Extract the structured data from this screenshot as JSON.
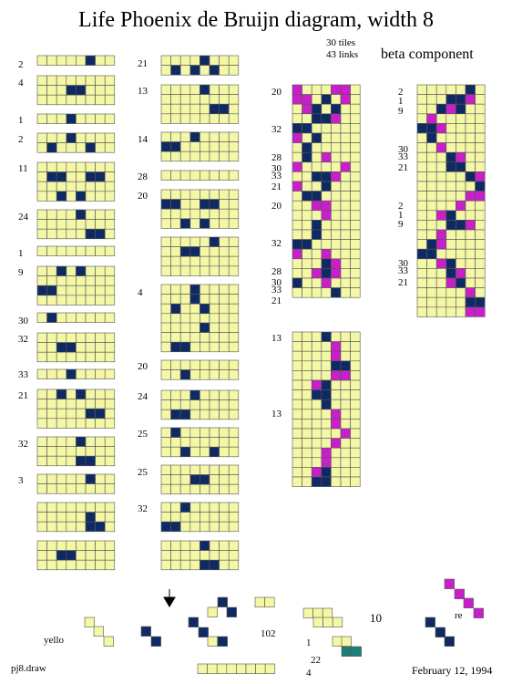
{
  "title": "Life Phoenix de Bruijn diagram, width 8",
  "stats": [
    "30 tiles",
    "43 links"
  ],
  "component_label": "beta component",
  "footer": {
    "file": "pj8.draw",
    "date": "February 12, 1994"
  },
  "bottom_labels": {
    "yello": "yello",
    "re": "re",
    "ten": "10",
    "one_oh_two": "102",
    "one": "1",
    "twenty_two": "22",
    "four": "4"
  },
  "colors": {
    "cell": "#f4f7a6",
    "filled": "#0f2a63",
    "magenta": "#c81fc8",
    "teal": "#1c7d7a",
    "grid": "#555555"
  },
  "col1": {
    "labels": [
      "2",
      "4",
      "1",
      "2",
      "11",
      "24",
      "1",
      "9",
      "30",
      "32",
      "33",
      "21",
      "32",
      "3"
    ],
    "tiles": [
      {
        "rows": 1,
        "cells": [
          [
            0,
            5
          ]
        ]
      },
      {
        "rows": 3,
        "cells": [
          [
            1,
            3
          ],
          [
            1,
            4
          ]
        ]
      },
      {
        "rows": 1,
        "cells": [
          [
            0,
            3
          ]
        ]
      },
      {
        "rows": 2,
        "cells": [
          [
            0,
            3
          ],
          [
            1,
            1
          ],
          [
            1,
            5
          ]
        ]
      },
      {
        "rows": 4,
        "cells": [
          [
            1,
            1
          ],
          [
            1,
            2
          ],
          [
            1,
            5
          ],
          [
            1,
            6
          ],
          [
            3,
            2
          ],
          [
            3,
            4
          ]
        ]
      },
      {
        "rows": 3,
        "cells": [
          [
            0,
            4
          ],
          [
            2,
            5
          ],
          [
            2,
            6
          ]
        ]
      },
      {
        "rows": 1,
        "cells": []
      },
      {
        "rows": 4,
        "cells": [
          [
            0,
            2
          ],
          [
            0,
            4
          ],
          [
            2,
            0
          ],
          [
            2,
            1
          ]
        ]
      },
      {
        "rows": 1,
        "cells": [
          [
            0,
            1
          ]
        ]
      },
      {
        "rows": 3,
        "cells": [
          [
            1,
            2
          ],
          [
            1,
            3
          ]
        ]
      },
      {
        "rows": 1,
        "cells": [
          [
            0,
            3
          ]
        ]
      },
      {
        "rows": 4,
        "cells": [
          [
            0,
            2
          ],
          [
            0,
            4
          ],
          [
            2,
            5
          ],
          [
            2,
            6
          ]
        ]
      },
      {
        "rows": 3,
        "cells": [
          [
            0,
            4
          ],
          [
            2,
            4
          ],
          [
            2,
            5
          ]
        ]
      },
      {
        "rows": 2,
        "cells": [
          [
            0,
            5
          ]
        ]
      },
      {
        "rows": 3,
        "cells": [
          [
            1,
            5
          ],
          [
            2,
            5
          ],
          [
            2,
            6
          ]
        ]
      },
      {
        "rows": 3,
        "cells": [
          [
            1,
            2
          ],
          [
            1,
            3
          ]
        ]
      }
    ]
  },
  "col2": {
    "labels": [
      "21",
      "13",
      "14",
      "28",
      "20",
      "4",
      "20",
      "24",
      "25",
      "25",
      "32"
    ],
    "tiles": [
      {
        "rows": 2,
        "cells": [
          [
            0,
            4
          ],
          [
            1,
            1
          ],
          [
            1,
            3
          ],
          [
            1,
            5
          ]
        ]
      },
      {
        "rows": 4,
        "cells": [
          [
            0,
            4
          ],
          [
            2,
            5
          ],
          [
            2,
            6
          ]
        ]
      },
      {
        "rows": 3,
        "cells": [
          [
            0,
            3
          ],
          [
            1,
            0
          ],
          [
            1,
            1
          ]
        ]
      },
      {
        "rows": 1,
        "cells": []
      },
      {
        "rows": 4,
        "cells": [
          [
            1,
            0
          ],
          [
            1,
            1
          ],
          [
            1,
            4
          ],
          [
            1,
            5
          ],
          [
            3,
            2
          ],
          [
            3,
            4
          ]
        ]
      },
      {
        "rows": 4,
        "cells": [
          [
            0,
            5
          ],
          [
            1,
            2
          ],
          [
            1,
            3
          ]
        ]
      },
      {
        "rows": 4,
        "cells": [
          [
            0,
            3
          ],
          [
            1,
            3
          ],
          [
            2,
            1
          ],
          [
            2,
            4
          ]
        ]
      },
      {
        "rows": 3,
        "cells": [
          [
            0,
            4
          ],
          [
            2,
            1
          ],
          [
            2,
            2
          ]
        ]
      },
      {
        "rows": 2,
        "cells": [
          [
            1,
            2
          ]
        ]
      },
      {
        "rows": 3,
        "cells": [
          [
            0,
            3
          ],
          [
            2,
            1
          ],
          [
            2,
            2
          ]
        ]
      },
      {
        "rows": 3,
        "cells": [
          [
            0,
            1
          ],
          [
            2,
            2
          ],
          [
            2,
            5
          ]
        ]
      },
      {
        "rows": 3,
        "cells": [
          [
            1,
            3
          ],
          [
            1,
            4
          ]
        ]
      },
      {
        "rows": 3,
        "cells": [
          [
            0,
            2
          ],
          [
            2,
            0
          ],
          [
            2,
            1
          ]
        ]
      },
      {
        "rows": 3,
        "cells": [
          [
            0,
            4
          ],
          [
            2,
            4
          ],
          [
            2,
            5
          ]
        ]
      }
    ]
  },
  "col3": {
    "labels": [
      "20",
      "32",
      "28",
      "30",
      "33",
      "21",
      "20",
      "32",
      "28",
      "30",
      "33",
      "21",
      "13",
      "13"
    ],
    "grid": {
      "rows": 22,
      "cols": 7,
      "filled": [
        [
          1,
          3
        ],
        [
          2,
          2
        ],
        [
          2,
          4
        ],
        [
          3,
          2
        ],
        [
          3,
          3
        ],
        [
          4,
          0
        ],
        [
          4,
          1
        ],
        [
          5,
          2
        ],
        [
          6,
          1
        ],
        [
          7,
          1
        ],
        [
          9,
          2
        ],
        [
          9,
          3
        ],
        [
          10,
          3
        ],
        [
          11,
          1
        ],
        [
          11,
          2
        ],
        [
          14,
          2
        ],
        [
          15,
          2
        ],
        [
          16,
          0
        ],
        [
          16,
          1
        ],
        [
          18,
          3
        ],
        [
          19,
          3
        ],
        [
          20,
          0
        ],
        [
          21,
          4
        ]
      ],
      "magenta": [
        [
          0,
          0
        ],
        [
          0,
          4
        ],
        [
          0,
          5
        ],
        [
          1,
          0
        ],
        [
          1,
          1
        ],
        [
          1,
          5
        ],
        [
          2,
          1
        ],
        [
          3,
          4
        ],
        [
          5,
          0
        ],
        [
          7,
          3
        ],
        [
          8,
          0
        ],
        [
          8,
          5
        ],
        [
          9,
          4
        ],
        [
          10,
          0
        ],
        [
          12,
          2
        ],
        [
          12,
          3
        ],
        [
          13,
          3
        ],
        [
          17,
          0
        ],
        [
          17,
          3
        ],
        [
          18,
          4
        ],
        [
          19,
          2
        ],
        [
          19,
          4
        ],
        [
          20,
          3
        ]
      ]
    },
    "grid2": {
      "rows": 16,
      "cols": 7,
      "filled": [
        [
          0,
          3
        ],
        [
          3,
          4
        ],
        [
          3,
          5
        ],
        [
          5,
          3
        ],
        [
          6,
          2
        ],
        [
          6,
          3
        ],
        [
          7,
          3
        ],
        [
          14,
          3
        ],
        [
          15,
          2
        ],
        [
          15,
          3
        ]
      ],
      "magenta": [
        [
          1,
          4
        ],
        [
          2,
          4
        ],
        [
          4,
          5
        ],
        [
          4,
          4
        ],
        [
          5,
          2
        ],
        [
          8,
          4
        ],
        [
          9,
          4
        ],
        [
          10,
          5
        ],
        [
          11,
          4
        ],
        [
          12,
          3
        ],
        [
          13,
          3
        ],
        [
          14,
          2
        ]
      ]
    }
  },
  "col4": {
    "labels": [
      "2",
      "1",
      "9",
      "30",
      "33",
      "21",
      "2",
      "1",
      "9",
      "30",
      "33",
      "21"
    ],
    "grid": {
      "rows": 24,
      "cols": 7,
      "filled": [
        [
          0,
          5
        ],
        [
          1,
          3
        ],
        [
          1,
          4
        ],
        [
          2,
          2
        ],
        [
          2,
          4
        ],
        [
          4,
          0
        ],
        [
          4,
          1
        ],
        [
          5,
          1
        ],
        [
          7,
          3
        ],
        [
          8,
          3
        ],
        [
          8,
          4
        ],
        [
          9,
          5
        ],
        [
          10,
          6
        ],
        [
          13,
          3
        ],
        [
          14,
          3
        ],
        [
          14,
          4
        ],
        [
          16,
          1
        ],
        [
          17,
          0
        ],
        [
          17,
          1
        ],
        [
          18,
          3
        ],
        [
          19,
          3
        ],
        [
          20,
          4
        ],
        [
          22,
          5
        ],
        [
          22,
          6
        ]
      ],
      "magenta": [
        [
          1,
          5
        ],
        [
          2,
          3
        ],
        [
          3,
          1
        ],
        [
          4,
          2
        ],
        [
          6,
          2
        ],
        [
          7,
          4
        ],
        [
          9,
          6
        ],
        [
          11,
          5
        ],
        [
          11,
          6
        ],
        [
          12,
          4
        ],
        [
          13,
          2
        ],
        [
          14,
          5
        ],
        [
          15,
          2
        ],
        [
          16,
          2
        ],
        [
          18,
          2
        ],
        [
          19,
          4
        ],
        [
          20,
          3
        ],
        [
          21,
          5
        ],
        [
          23,
          5
        ],
        [
          23,
          6
        ]
      ]
    }
  }
}
